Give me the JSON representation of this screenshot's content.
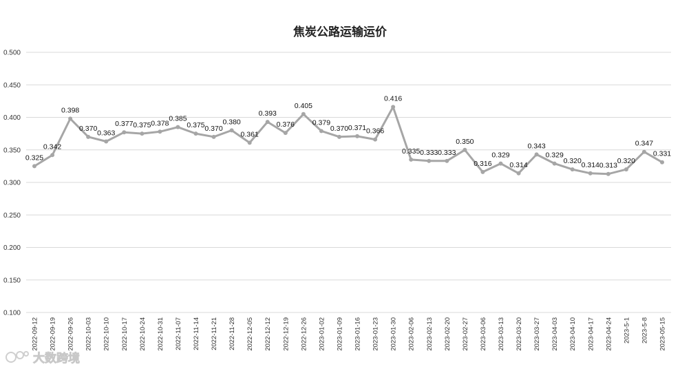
{
  "chart_data": {
    "type": "line",
    "title": "焦炭公路运输运价",
    "xlabel": "",
    "ylabel": "",
    "ylim": [
      0.1,
      0.5
    ],
    "yticks": [
      "0.100",
      "0.150",
      "0.200",
      "0.250",
      "0.300",
      "0.350",
      "0.400",
      "0.450",
      "0.500"
    ],
    "grid": true,
    "categories": [
      "2022-09-12",
      "2022-09-19",
      "2022-09-26",
      "2022-10-03",
      "2022-10-10",
      "2022-10-17",
      "2022-10-24",
      "2022-10-31",
      "2022-11-07",
      "2022-11-14",
      "2022-11-21",
      "2022-11-28",
      "2022-12-05",
      "2022-12-12",
      "2022-12-19",
      "2022-12-26",
      "2023-01-02",
      "2023-01-09",
      "2023-01-16",
      "2023-01-23",
      "2023-01-30",
      "2023-02-06",
      "2023-02-13",
      "2023-02-20",
      "2023-02-27",
      "2023-03-06",
      "2023-03-13",
      "2023-03-20",
      "2023-03-27",
      "2023-04-03",
      "2023-04-10",
      "2023-04-17",
      "2023-04-24",
      "2023-5-1",
      "2023-5-8",
      "2023-05-15"
    ],
    "series": [
      {
        "values": [
          0.325,
          0.342,
          0.398,
          0.37,
          0.363,
          0.377,
          0.375,
          0.378,
          0.385,
          0.375,
          0.37,
          0.38,
          0.361,
          0.393,
          0.376,
          0.405,
          0.379,
          0.37,
          0.371,
          0.366,
          0.416,
          0.335,
          0.333,
          0.333,
          0.35,
          0.316,
          0.329,
          0.314,
          0.343,
          0.329,
          0.32,
          0.314,
          0.313,
          0.32,
          0.347,
          0.331
        ],
        "color": "#a6a6a6"
      }
    ],
    "line_color": "#a6a6a6",
    "grid_color": "#d9d9d9"
  },
  "watermark": {
    "text": "大数跨境",
    "logo_text": "LOGO"
  }
}
